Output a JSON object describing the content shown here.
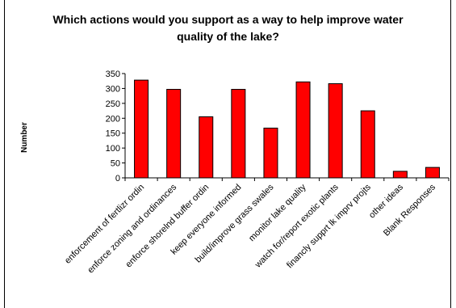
{
  "chart_data": {
    "type": "bar",
    "title": "Which actions would you support as a way to help improve water quality of the lake?",
    "ylabel": "Number",
    "xlabel": "",
    "ylim": [
      0,
      350
    ],
    "yticks": [
      0,
      50,
      100,
      150,
      200,
      250,
      300,
      350
    ],
    "grid": false,
    "legend": "none",
    "bar_color": "#ff0000",
    "categories": [
      "enforcement of fertlizr ordin",
      "enforce zoning and ordinances",
      "enforce shorelnd buffer ordin",
      "keep everyone informed",
      "build/improve grass swales",
      "monitor lake quality",
      "watch for/report exotic plants",
      "financly supprt lk imprv projts",
      "other ideas",
      "Blank Responses"
    ],
    "values": [
      328,
      297,
      205,
      297,
      167,
      322,
      316,
      225,
      22,
      35
    ]
  }
}
